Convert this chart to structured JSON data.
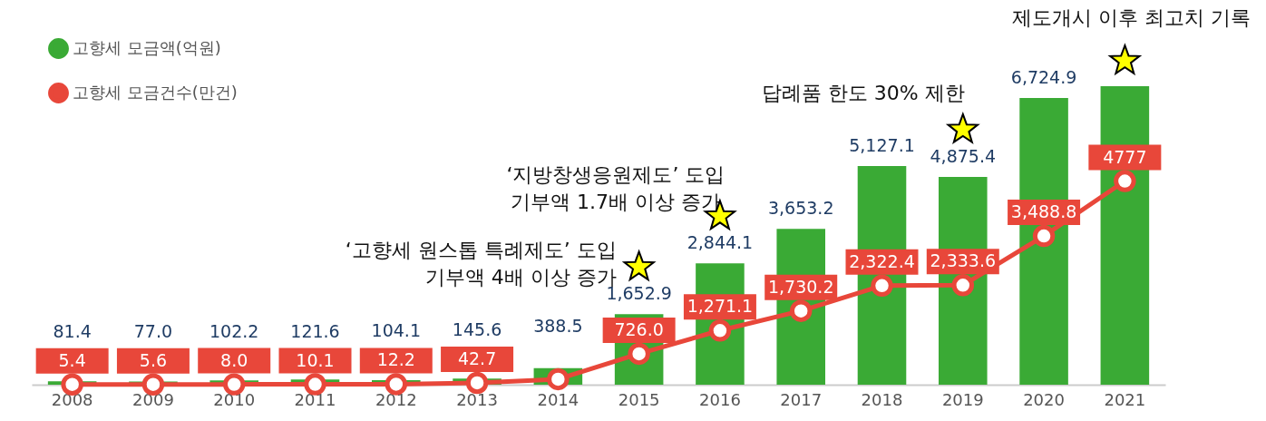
{
  "chart_data": {
    "type": "bar",
    "categories": [
      "2008",
      "2009",
      "2010",
      "2011",
      "2012",
      "2013",
      "2014",
      "2015",
      "2016",
      "2017",
      "2018",
      "2019",
      "2020",
      "2021"
    ],
    "series": [
      {
        "name": "고향세 모금액(억원)",
        "color": "#3aaa35",
        "values": [
          81.4,
          77.0,
          102.2,
          121.6,
          104.1,
          145.6,
          388.5,
          1652.9,
          2844.1,
          3653.2,
          5127.1,
          4875.4,
          6724.9,
          7000
        ],
        "value_labels": [
          "81.4",
          "77.0",
          "102.2",
          "121.6",
          "104.1",
          "145.6",
          "388.5",
          "1,652.9",
          "2,844.1",
          "3,653.2",
          "5,127.1",
          "4,875.4",
          "6,724.9",
          null
        ]
      },
      {
        "name": "고향세 모금건수(만건)",
        "type": "line",
        "color": "#e8473a",
        "marker": "circle",
        "values": [
          5.4,
          5.6,
          8.0,
          10.1,
          12.2,
          42.7,
          130,
          726.0,
          1271.1,
          1730.2,
          2322.4,
          2333.6,
          3488.8,
          4777
        ],
        "value_labels": [
          "5.4",
          "5.6",
          "8.0",
          "10.1",
          "12.2",
          "42.7",
          null,
          "726.0",
          "1,271.1",
          "1,730.2",
          "2,322.4",
          "2,333.6",
          "3,488.8",
          "4777"
        ]
      }
    ],
    "annotations": [
      "‘고향세 원스톱 특례제도’ 도입\n기부액 4배 이상 증가",
      "‘지방창생응원제도’ 도입\n기부액 1.7배 이상 증가",
      "답례품 한도 30% 제한",
      "제도개시 이후 최고치 기록"
    ],
    "legend": "top left",
    "grid": false
  }
}
